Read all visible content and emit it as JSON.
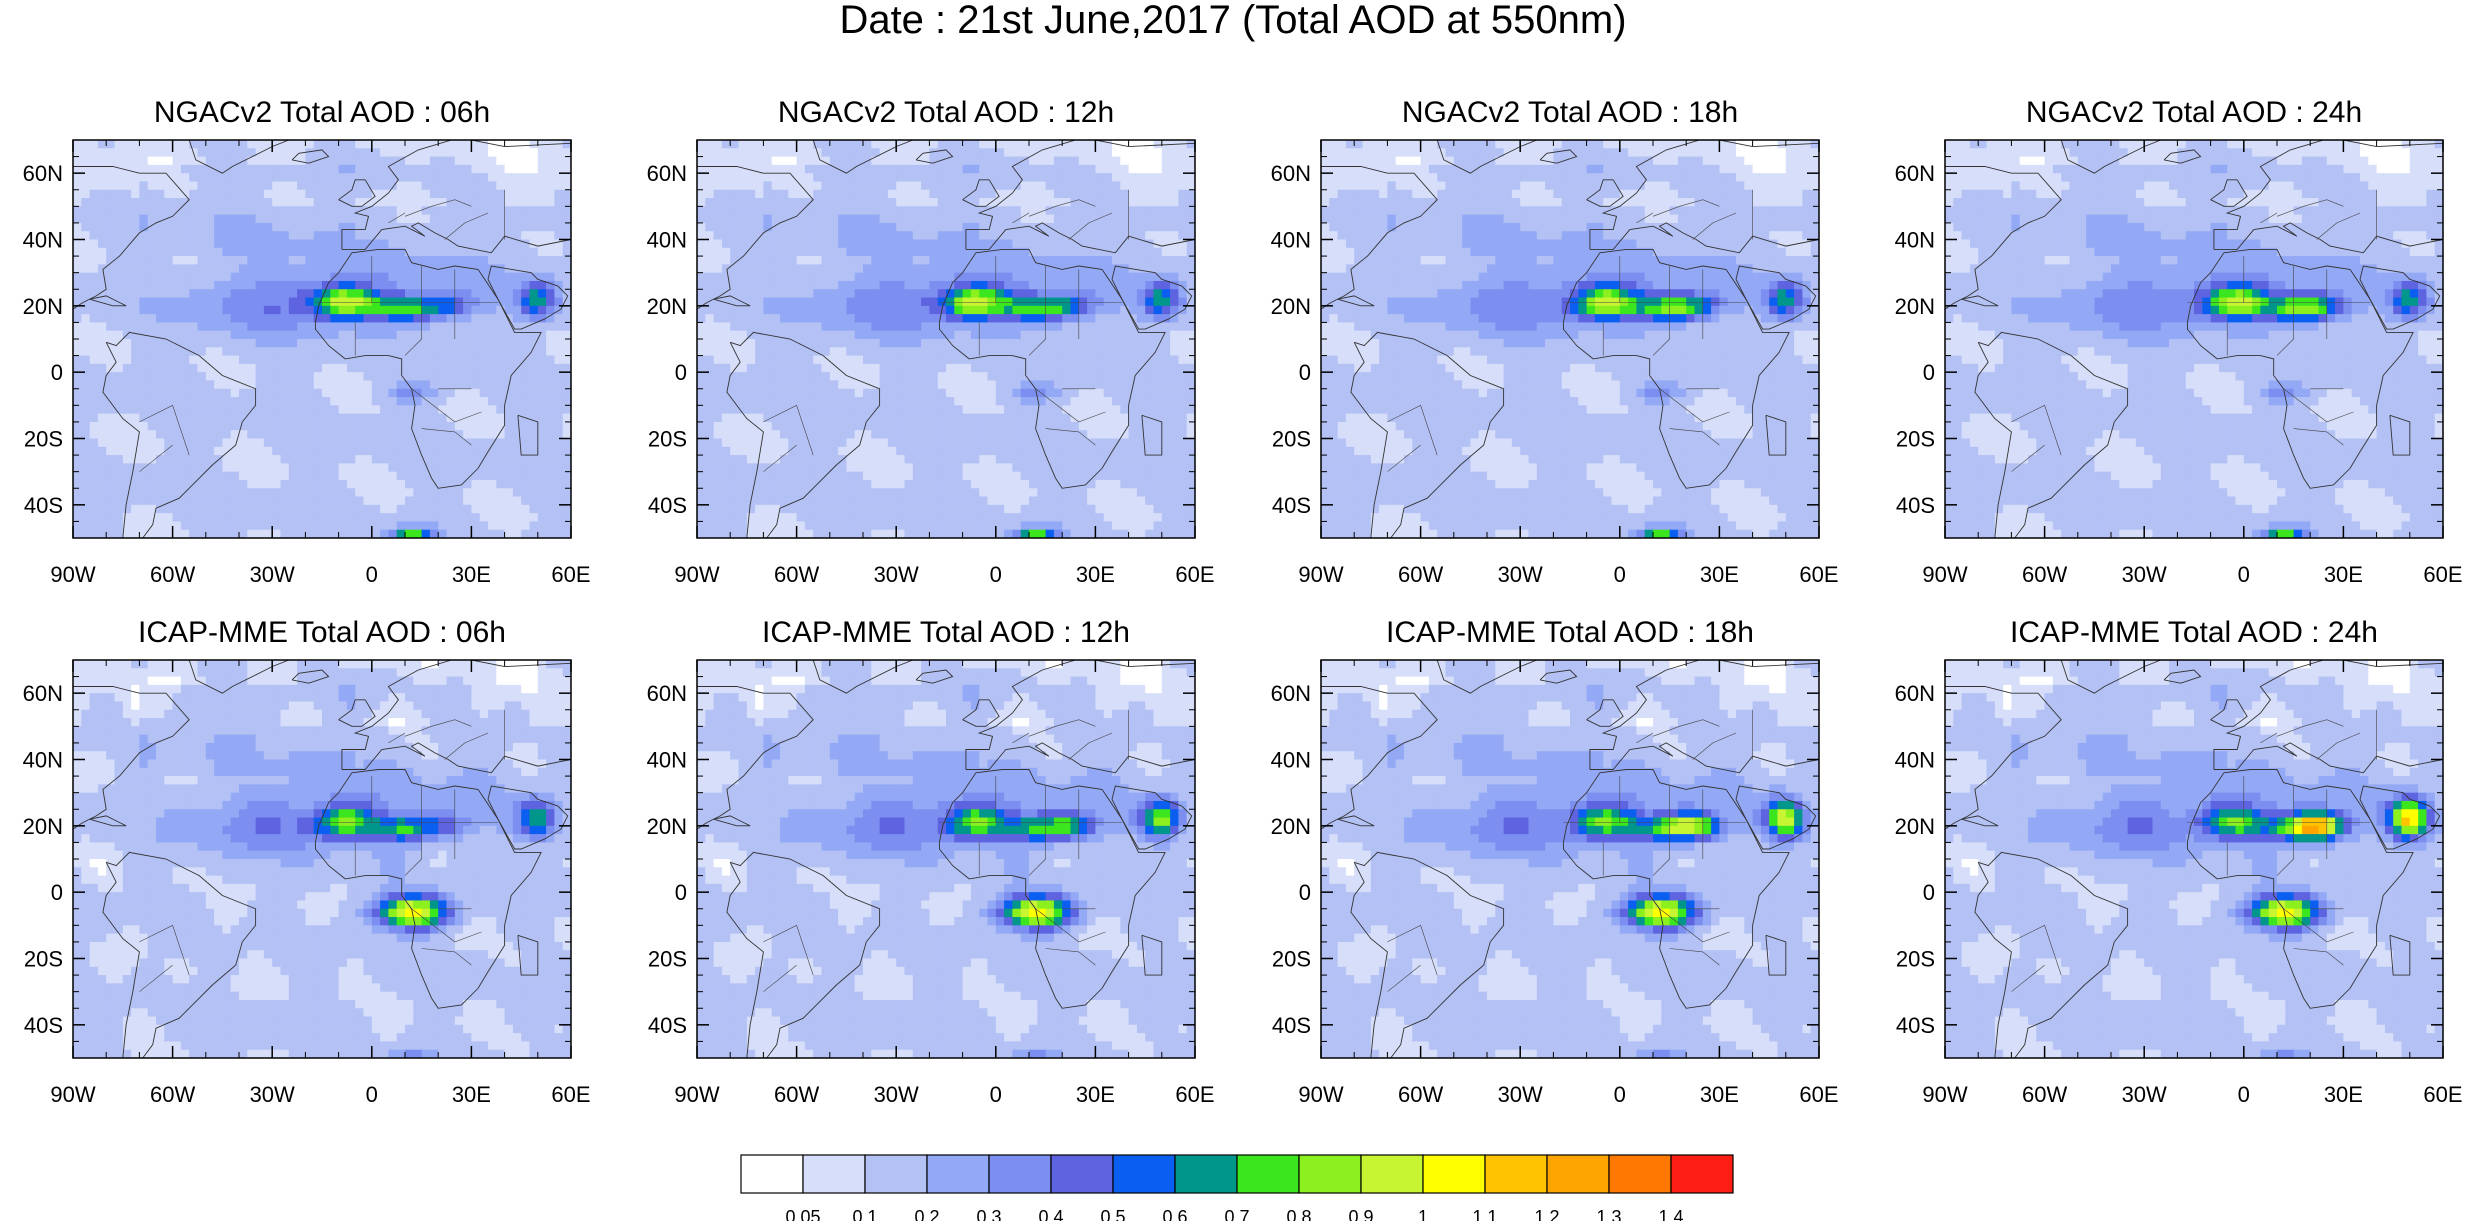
{
  "title": "Date : 21st June,2017 (Total AOD at 550nm)",
  "lon_tick_labels": [
    "90W",
    "60W",
    "30W",
    "0",
    "30E",
    "60E"
  ],
  "lat_tick_labels": [
    "60N",
    "40N",
    "20N",
    "0",
    "20S",
    "40S"
  ],
  "map_extent": {
    "lon": [
      -90,
      60
    ],
    "lat": [
      -50,
      70
    ]
  },
  "rows": [
    {
      "model": "NGACv2",
      "panels": [
        {
          "title": "NGACv2 Total AOD : 06h",
          "lead": "06h"
        },
        {
          "title": "NGACv2 Total AOD : 12h",
          "lead": "12h"
        },
        {
          "title": "NGACv2 Total AOD : 18h",
          "lead": "18h"
        },
        {
          "title": "NGACv2 Total AOD : 24h",
          "lead": "24h"
        }
      ]
    },
    {
      "model": "ICAP-MME",
      "panels": [
        {
          "title": "ICAP-MME Total AOD : 06h",
          "lead": "06h"
        },
        {
          "title": "ICAP-MME Total AOD : 12h",
          "lead": "12h"
        },
        {
          "title": "ICAP-MME Total AOD : 18h",
          "lead": "18h"
        },
        {
          "title": "ICAP-MME Total AOD : 24h",
          "lead": "24h"
        }
      ]
    }
  ],
  "colorbar": {
    "labels": [
      "0.05",
      "0.1",
      "0.2",
      "0.3",
      "0.4",
      "0.5",
      "0.6",
      "0.7",
      "0.8",
      "0.9",
      "1",
      "1.1",
      "1.2",
      "1.3",
      "1.4"
    ],
    "colors": [
      "#ffffff",
      "#d6def9",
      "#b3c1f5",
      "#93a9f5",
      "#7c8ff0",
      "#5e63e0",
      "#0b5ff0",
      "#00968c",
      "#3ce61e",
      "#8cf01e",
      "#c8f532",
      "#ffff00",
      "#ffc300",
      "#ffa500",
      "#ff7800",
      "#ff1e14"
    ]
  }
}
